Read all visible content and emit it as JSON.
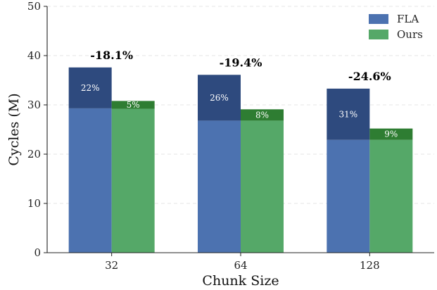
{
  "chart_data": {
    "type": "bar",
    "xlabel": "Chunk Size",
    "ylabel": "Cycles (M)",
    "ylim": [
      0,
      50
    ],
    "yticks": [
      0,
      10,
      20,
      30,
      40,
      50
    ],
    "grid": true,
    "legend_position": "top-right",
    "categories": [
      "32",
      "64",
      "128"
    ],
    "series": [
      {
        "name": "FLA",
        "color_base": "#4c72b0",
        "color_top": "#2e4a7e",
        "totals": [
          37.6,
          36.1,
          33.3
        ],
        "base_values": [
          29.3,
          26.8,
          22.9
        ],
        "top_values": [
          8.3,
          9.3,
          10.4
        ],
        "top_labels": [
          "22%",
          "26%",
          "31%"
        ]
      },
      {
        "name": "Ours",
        "color_base": "#55a868",
        "color_top": "#2e7d32",
        "totals": [
          30.8,
          29.1,
          25.2
        ],
        "base_values": [
          29.2,
          26.8,
          22.9
        ],
        "top_values": [
          1.6,
          2.3,
          2.3
        ],
        "top_labels": [
          "5%",
          "8%",
          "9%"
        ]
      }
    ],
    "reductions": [
      "-18.1%",
      "-19.4%",
      "-24.6%"
    ]
  }
}
